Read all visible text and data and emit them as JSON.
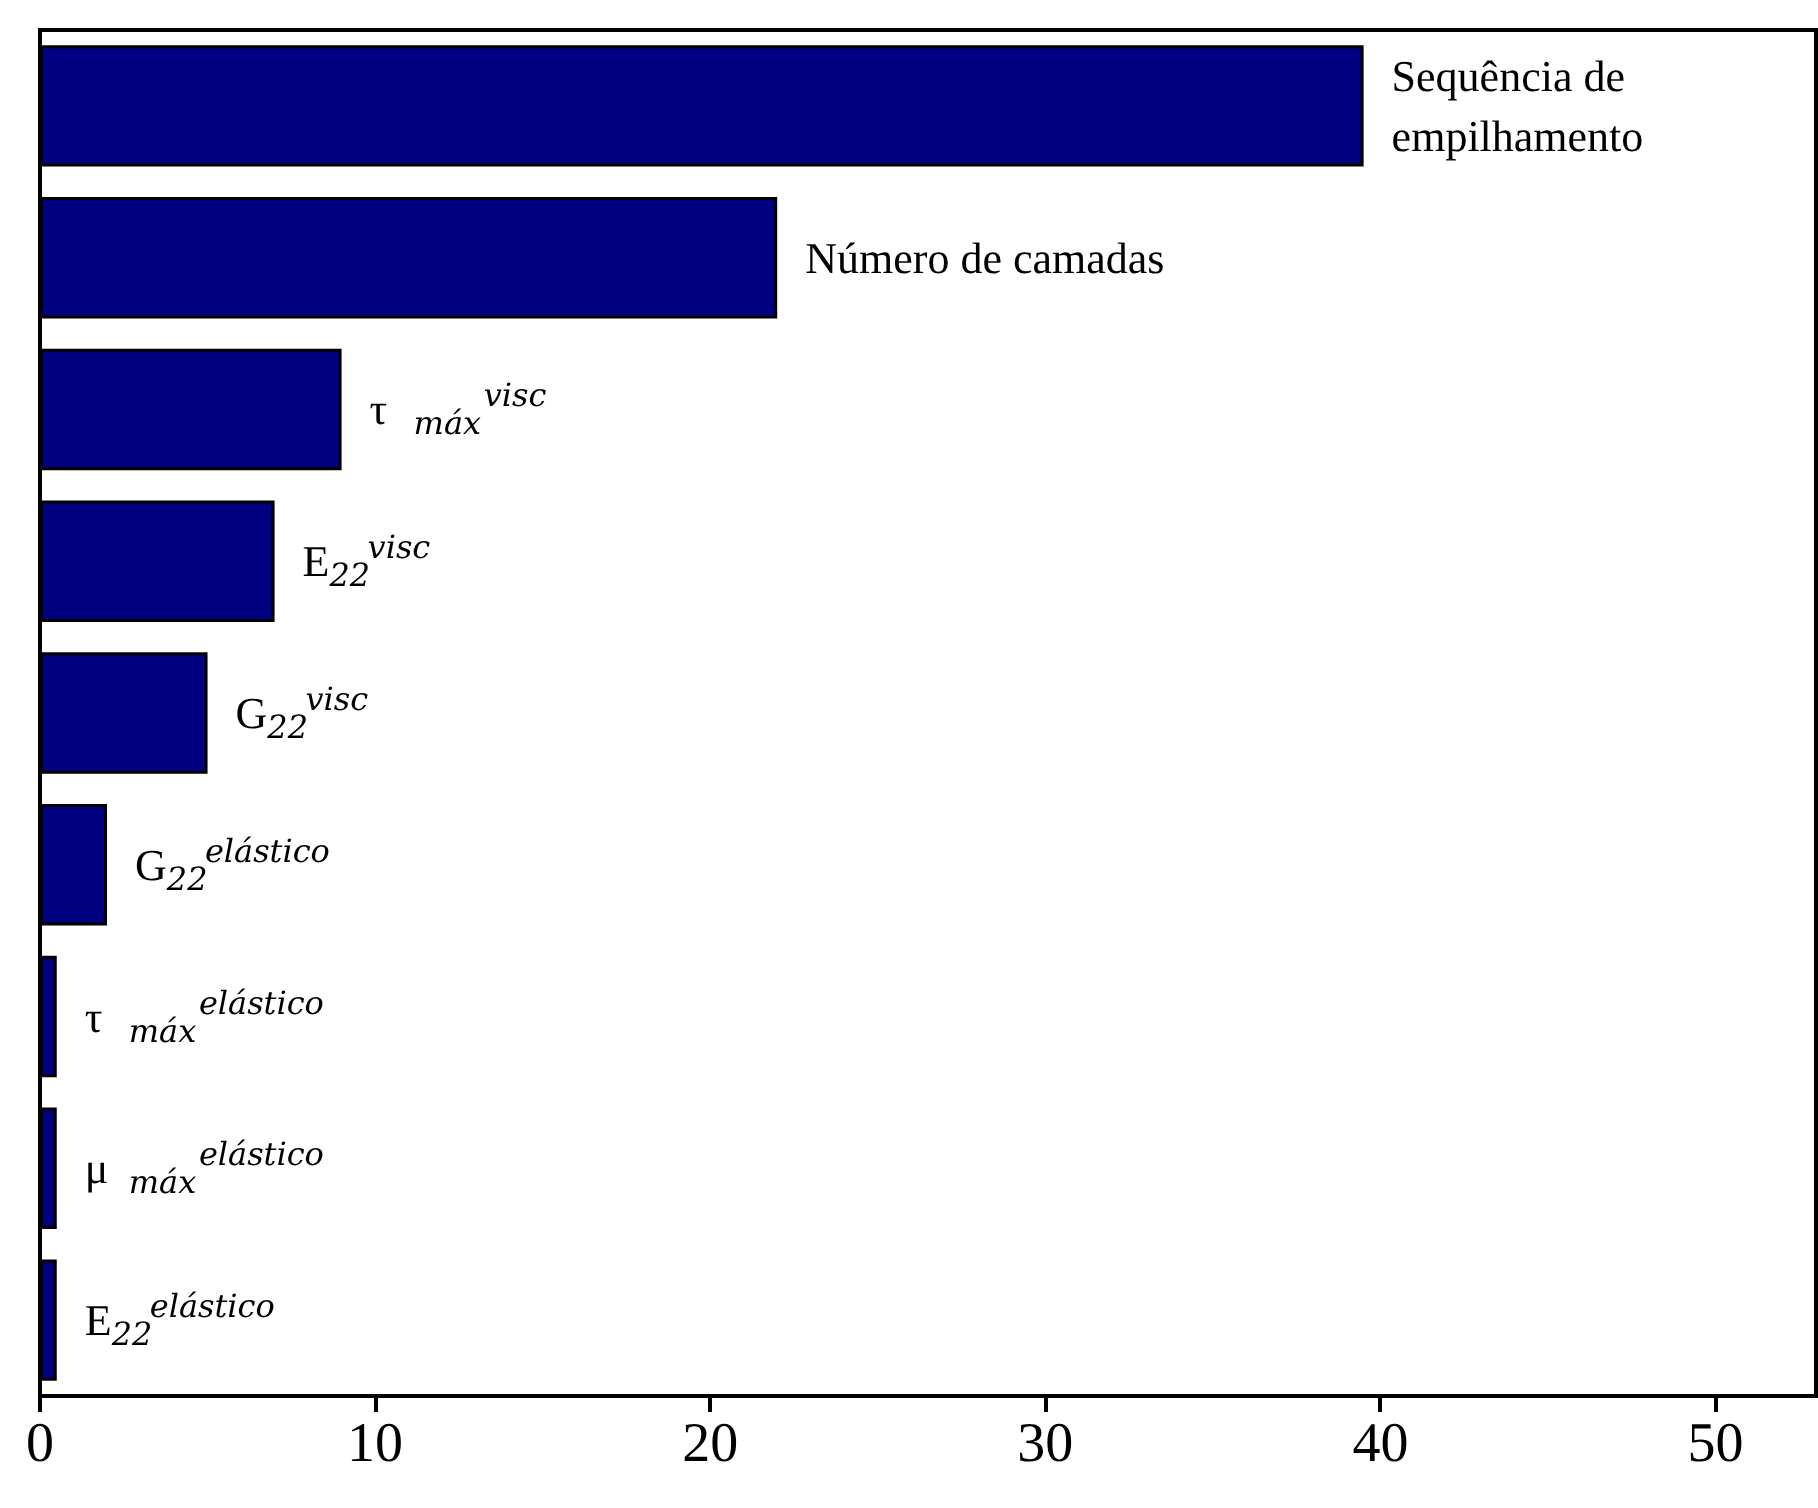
{
  "chart_data": {
    "type": "bar",
    "orientation": "horizontal",
    "categories": [
      "Sequência de empilhamento",
      "Número de camadas",
      "τ$_{máx}$$^{visc}$",
      "E$_{22}$$^{visc}$",
      "G$_{22}$$^{visc}$",
      "G$_{22}$$^{elástico}$",
      "τ$_{máx}$$^{elástico}$",
      "μ$_{máx}$$^{elástico}$",
      "E$_{22}$$^{elástico}$"
    ],
    "values": [
      39.5,
      22,
      9,
      7,
      5,
      2,
      0.5,
      0.5,
      0.5
    ],
    "color": "#000080",
    "xlim": [
      0,
      53
    ],
    "xticks": [
      0,
      10,
      20,
      30,
      40,
      50
    ],
    "tick_labels": "x",
    "grid": false
  }
}
